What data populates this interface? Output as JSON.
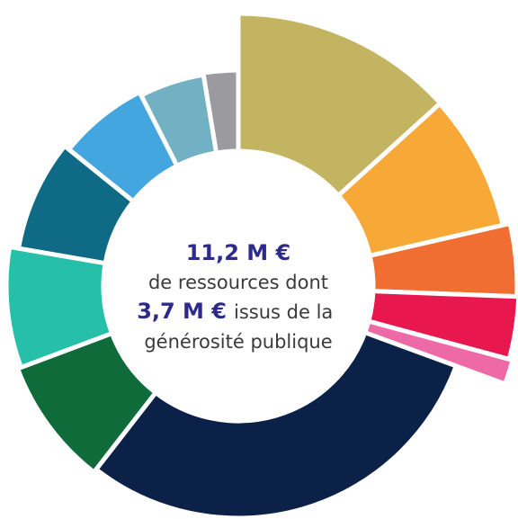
{
  "chart_data": {
    "type": "pie",
    "donut": true,
    "values": [
      13.3,
      8.1,
      4.2,
      3.6,
      1.4,
      29.9,
      8.8,
      8.4,
      8.1,
      6.7,
      4.9,
      2.6
    ],
    "colors": [
      "#c2b461",
      "#f7a836",
      "#f06e32",
      "#e8174d",
      "#ee6aa7",
      "#0b2147",
      "#0f6b3a",
      "#25bfaa",
      "#0f6a86",
      "#44a6df",
      "#72b0c4",
      "#9b9b9f"
    ],
    "center_text": [
      "11,2 M €",
      "de ressources dont",
      "3,7 M €",
      "issus de la",
      "générosité publique"
    ]
  }
}
